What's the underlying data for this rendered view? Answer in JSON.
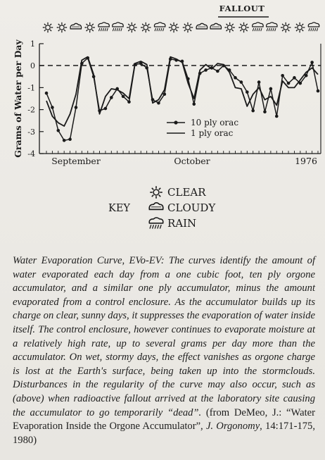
{
  "chart_data": {
    "type": "line",
    "ylabel": "Grams of Water per Day",
    "ylim": [
      -4,
      1
    ],
    "yticks": [
      "1",
      "0",
      "-1",
      "-2",
      "-3",
      "-4"
    ],
    "xtick_labels": [
      "September",
      "October",
      "1976"
    ],
    "fallout_label": "FALLOUT",
    "grid": false,
    "legend_position": "center-right",
    "zero_line": "dashed",
    "series": [
      {
        "name": "10 ply orac",
        "marker": "dot",
        "values": [
          -1.25,
          -1.9,
          -2.95,
          -3.4,
          -3.35,
          -1.9,
          0.1,
          0.35,
          -0.5,
          -2.05,
          -1.95,
          -1.45,
          -1.05,
          -1.4,
          -1.65,
          0.05,
          0.1,
          -0.1,
          -1.55,
          -1.7,
          -1.3,
          0.3,
          0.25,
          0.2,
          -0.6,
          -1.75,
          -0.35,
          -0.2,
          -0.1,
          -0.25,
          0.0,
          -0.2,
          -0.55,
          -0.75,
          -1.2,
          -2.05,
          -0.75,
          -2.1,
          -1.05,
          -2.3,
          -0.45,
          -0.8,
          -0.55,
          -0.8,
          -0.45,
          0.15,
          -1.15
        ]
      },
      {
        "name": "1 ply orac",
        "marker": "none",
        "values": [
          -1.6,
          -2.3,
          -2.6,
          -2.75,
          -2.2,
          -1.3,
          0.25,
          0.4,
          -0.4,
          -2.2,
          -1.4,
          -1.05,
          -1.1,
          -1.25,
          -1.5,
          0.1,
          0.2,
          0.05,
          -1.7,
          -1.55,
          -1.1,
          0.4,
          0.3,
          0.15,
          -0.8,
          -1.5,
          -0.2,
          0.05,
          -0.15,
          0.1,
          0.05,
          -0.3,
          -1.0,
          -1.05,
          -1.85,
          -1.3,
          -1.0,
          -1.55,
          -1.4,
          -1.8,
          -0.7,
          -1.0,
          -1.0,
          -0.65,
          -0.3,
          -0.1,
          -0.4
        ]
      }
    ],
    "weather_icons": [
      "clear",
      "clear",
      "cloudy",
      "clear",
      "rain",
      "rain",
      "clear",
      "clear",
      "rain",
      "clear",
      "clear",
      "cloudy",
      "cloudy",
      "clear",
      "clear",
      "rain",
      "rain",
      "clear",
      "clear",
      "rain"
    ]
  },
  "key": {
    "title": "KEY",
    "items": [
      {
        "icon": "clear-icon",
        "label": "CLEAR"
      },
      {
        "icon": "cloudy-icon",
        "label": "CLOUDY"
      },
      {
        "icon": "rain-icon",
        "label": "RAIN"
      }
    ]
  },
  "caption": {
    "title": "Water Evaporation Curve, EVo-EV:",
    "body": " The curves identify the amount of water evaporated each day from a one cubic foot, ten ply orgone accumulator, and a similar one ply accumulator, minus the amount evaporated from a control enclosure. As the accumulator builds up its charge on clear, sunny days, it suppresses the evaporation of water inside itself. The control enclosure, however continues to evaporate moisture at a relatively high rate, up to several grams per day more than the accumulator. On wet, stormy days, the effect vanishes as orgone charge is lost at the Earth's surface, being taken up into the stormclouds. Disturbances in the regularity of the curve may also occur, such as (above) when radioactive fallout arrived at the laboratory site causing the accumulator to go temporarily “dead”.",
    "cite_prefix": " (from DeMeo, J.: “Water Evaporation Inside the Orgone Accumulator”, ",
    "cite_journal": "J. Orgonomy",
    "cite_suffix": ", 14:171-175, 1980)"
  }
}
